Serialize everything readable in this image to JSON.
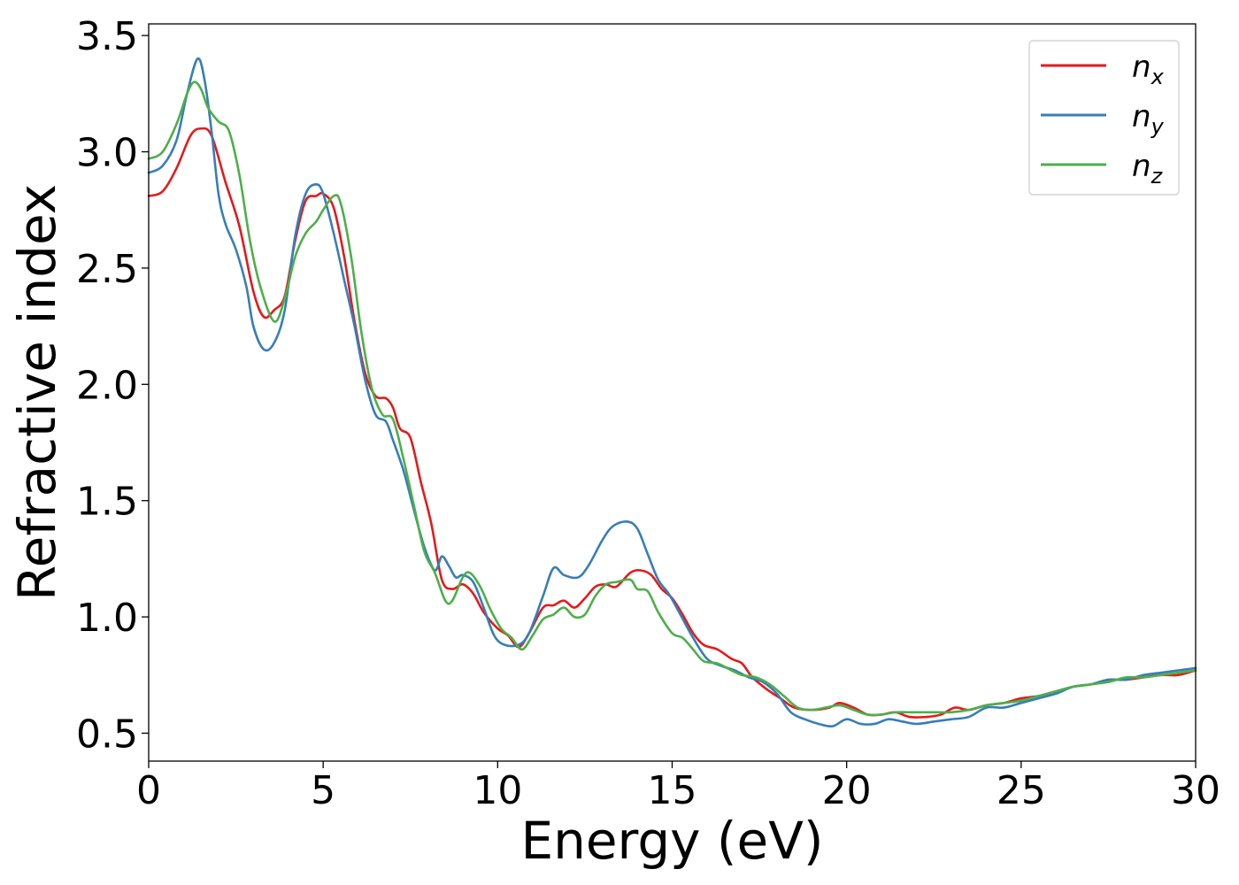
{
  "chart_data": {
    "type": "line",
    "xlabel": "Energy (eV)",
    "ylabel": "Refractive index",
    "xlim": [
      0,
      30
    ],
    "ylim": [
      0.38,
      3.55
    ],
    "xticks": [
      0,
      5,
      10,
      15,
      20,
      25,
      30
    ],
    "xtick_labels": [
      "0",
      "5",
      "10",
      "15",
      "20",
      "25",
      "30"
    ],
    "yticks": [
      0.5,
      1.0,
      1.5,
      2.0,
      2.5,
      3.0,
      3.5
    ],
    "ytick_labels": [
      "0.5",
      "1.0",
      "1.5",
      "2.0",
      "2.5",
      "3.0",
      "3.5"
    ],
    "grid": false,
    "legend_position": "top-right",
    "series": [
      {
        "name": "n_x",
        "base": "n",
        "sub": "x",
        "color": "#e41a1c",
        "points": [
          [
            0,
            2.81
          ],
          [
            0.4,
            2.83
          ],
          [
            0.8,
            2.93
          ],
          [
            1.2,
            3.07
          ],
          [
            1.5,
            3.1
          ],
          [
            1.8,
            3.07
          ],
          [
            2.2,
            2.87
          ],
          [
            2.6,
            2.68
          ],
          [
            3.0,
            2.4
          ],
          [
            3.3,
            2.29
          ],
          [
            3.6,
            2.32
          ],
          [
            3.9,
            2.38
          ],
          [
            4.2,
            2.62
          ],
          [
            4.5,
            2.79
          ],
          [
            4.8,
            2.81
          ],
          [
            5.0,
            2.82
          ],
          [
            5.3,
            2.76
          ],
          [
            5.6,
            2.55
          ],
          [
            5.9,
            2.27
          ],
          [
            6.2,
            2.05
          ],
          [
            6.5,
            1.95
          ],
          [
            6.8,
            1.94
          ],
          [
            7.0,
            1.9
          ],
          [
            7.2,
            1.81
          ],
          [
            7.5,
            1.77
          ],
          [
            7.8,
            1.58
          ],
          [
            8.1,
            1.4
          ],
          [
            8.4,
            1.16
          ],
          [
            8.7,
            1.12
          ],
          [
            9.0,
            1.14
          ],
          [
            9.3,
            1.1
          ],
          [
            9.6,
            1.02
          ],
          [
            10.0,
            0.95
          ],
          [
            10.3,
            0.92
          ],
          [
            10.6,
            0.87
          ],
          [
            10.9,
            0.93
          ],
          [
            11.3,
            1.04
          ],
          [
            11.6,
            1.05
          ],
          [
            11.9,
            1.07
          ],
          [
            12.2,
            1.04
          ],
          [
            12.5,
            1.08
          ],
          [
            12.8,
            1.13
          ],
          [
            13.1,
            1.14
          ],
          [
            13.4,
            1.13
          ],
          [
            13.8,
            1.19
          ],
          [
            14.1,
            1.2
          ],
          [
            14.4,
            1.18
          ],
          [
            14.7,
            1.12
          ],
          [
            15.0,
            1.08
          ],
          [
            15.3,
            1.01
          ],
          [
            15.6,
            0.93
          ],
          [
            15.9,
            0.88
          ],
          [
            16.3,
            0.86
          ],
          [
            16.7,
            0.82
          ],
          [
            17.0,
            0.8
          ],
          [
            17.3,
            0.74
          ],
          [
            17.7,
            0.69
          ],
          [
            18.1,
            0.65
          ],
          [
            18.5,
            0.61
          ],
          [
            19.0,
            0.6
          ],
          [
            19.5,
            0.61
          ],
          [
            19.8,
            0.63
          ],
          [
            20.2,
            0.61
          ],
          [
            20.6,
            0.58
          ],
          [
            21.0,
            0.58
          ],
          [
            21.4,
            0.59
          ],
          [
            21.8,
            0.57
          ],
          [
            22.3,
            0.57
          ],
          [
            22.7,
            0.58
          ],
          [
            23.1,
            0.61
          ],
          [
            23.5,
            0.6
          ],
          [
            24.0,
            0.62
          ],
          [
            24.5,
            0.63
          ],
          [
            25.0,
            0.65
          ],
          [
            25.5,
            0.66
          ],
          [
            26.0,
            0.68
          ],
          [
            26.5,
            0.7
          ],
          [
            27.0,
            0.71
          ],
          [
            27.5,
            0.73
          ],
          [
            28.0,
            0.73
          ],
          [
            28.5,
            0.74
          ],
          [
            29.0,
            0.75
          ],
          [
            29.5,
            0.75
          ],
          [
            30.0,
            0.77
          ]
        ]
      },
      {
        "name": "n_y",
        "base": "n",
        "sub": "y",
        "color": "#377eb8",
        "points": [
          [
            0,
            2.91
          ],
          [
            0.4,
            2.94
          ],
          [
            0.8,
            3.05
          ],
          [
            1.1,
            3.25
          ],
          [
            1.4,
            3.4
          ],
          [
            1.6,
            3.31
          ],
          [
            1.8,
            3.09
          ],
          [
            2.0,
            2.82
          ],
          [
            2.2,
            2.69
          ],
          [
            2.5,
            2.58
          ],
          [
            2.8,
            2.42
          ],
          [
            3.0,
            2.25
          ],
          [
            3.3,
            2.15
          ],
          [
            3.6,
            2.18
          ],
          [
            3.9,
            2.32
          ],
          [
            4.2,
            2.64
          ],
          [
            4.5,
            2.82
          ],
          [
            4.8,
            2.86
          ],
          [
            5.0,
            2.82
          ],
          [
            5.3,
            2.65
          ],
          [
            5.6,
            2.45
          ],
          [
            5.9,
            2.25
          ],
          [
            6.2,
            2.02
          ],
          [
            6.5,
            1.87
          ],
          [
            6.8,
            1.84
          ],
          [
            7.0,
            1.76
          ],
          [
            7.3,
            1.63
          ],
          [
            7.6,
            1.46
          ],
          [
            7.9,
            1.3
          ],
          [
            8.2,
            1.2
          ],
          [
            8.4,
            1.26
          ],
          [
            8.6,
            1.22
          ],
          [
            8.8,
            1.17
          ],
          [
            9.0,
            1.18
          ],
          [
            9.3,
            1.15
          ],
          [
            9.6,
            1.04
          ],
          [
            9.9,
            0.92
          ],
          [
            10.2,
            0.88
          ],
          [
            10.6,
            0.88
          ],
          [
            10.9,
            0.93
          ],
          [
            11.3,
            1.09
          ],
          [
            11.6,
            1.21
          ],
          [
            11.9,
            1.18
          ],
          [
            12.3,
            1.17
          ],
          [
            12.6,
            1.22
          ],
          [
            13.0,
            1.33
          ],
          [
            13.3,
            1.39
          ],
          [
            13.7,
            1.41
          ],
          [
            14.0,
            1.38
          ],
          [
            14.3,
            1.27
          ],
          [
            14.6,
            1.16
          ],
          [
            14.9,
            1.1
          ],
          [
            15.2,
            1.02
          ],
          [
            15.6,
            0.91
          ],
          [
            16.0,
            0.82
          ],
          [
            16.4,
            0.79
          ],
          [
            16.8,
            0.77
          ],
          [
            17.2,
            0.74
          ],
          [
            17.6,
            0.72
          ],
          [
            18.0,
            0.67
          ],
          [
            18.4,
            0.59
          ],
          [
            18.8,
            0.56
          ],
          [
            19.2,
            0.54
          ],
          [
            19.6,
            0.53
          ],
          [
            20.0,
            0.56
          ],
          [
            20.4,
            0.54
          ],
          [
            20.8,
            0.54
          ],
          [
            21.2,
            0.56
          ],
          [
            21.6,
            0.55
          ],
          [
            22.0,
            0.54
          ],
          [
            22.5,
            0.55
          ],
          [
            23.0,
            0.56
          ],
          [
            23.5,
            0.57
          ],
          [
            24.0,
            0.61
          ],
          [
            24.5,
            0.61
          ],
          [
            25.0,
            0.63
          ],
          [
            25.5,
            0.65
          ],
          [
            26.0,
            0.67
          ],
          [
            26.5,
            0.7
          ],
          [
            27.0,
            0.71
          ],
          [
            27.5,
            0.73
          ],
          [
            28.0,
            0.73
          ],
          [
            28.5,
            0.75
          ],
          [
            29.0,
            0.76
          ],
          [
            29.5,
            0.77
          ],
          [
            30.0,
            0.78
          ]
        ]
      },
      {
        "name": "n_z",
        "base": "n",
        "sub": "z",
        "color": "#4daf4a",
        "points": [
          [
            0,
            2.97
          ],
          [
            0.4,
            3.0
          ],
          [
            0.8,
            3.12
          ],
          [
            1.1,
            3.25
          ],
          [
            1.3,
            3.3
          ],
          [
            1.5,
            3.27
          ],
          [
            1.7,
            3.19
          ],
          [
            2.0,
            3.13
          ],
          [
            2.3,
            3.09
          ],
          [
            2.6,
            2.9
          ],
          [
            2.9,
            2.62
          ],
          [
            3.2,
            2.42
          ],
          [
            3.6,
            2.27
          ],
          [
            3.9,
            2.37
          ],
          [
            4.2,
            2.55
          ],
          [
            4.5,
            2.65
          ],
          [
            4.8,
            2.7
          ],
          [
            5.0,
            2.75
          ],
          [
            5.3,
            2.81
          ],
          [
            5.5,
            2.78
          ],
          [
            5.8,
            2.55
          ],
          [
            6.1,
            2.22
          ],
          [
            6.4,
            1.98
          ],
          [
            6.7,
            1.87
          ],
          [
            7.0,
            1.85
          ],
          [
            7.3,
            1.68
          ],
          [
            7.6,
            1.48
          ],
          [
            7.9,
            1.28
          ],
          [
            8.2,
            1.19
          ],
          [
            8.5,
            1.07
          ],
          [
            8.7,
            1.07
          ],
          [
            9.0,
            1.17
          ],
          [
            9.2,
            1.19
          ],
          [
            9.5,
            1.13
          ],
          [
            9.8,
            1.03
          ],
          [
            10.1,
            0.95
          ],
          [
            10.4,
            0.91
          ],
          [
            10.7,
            0.86
          ],
          [
            11.0,
            0.92
          ],
          [
            11.3,
            0.99
          ],
          [
            11.6,
            1.01
          ],
          [
            11.9,
            1.04
          ],
          [
            12.2,
            1.0
          ],
          [
            12.5,
            1.01
          ],
          [
            12.8,
            1.09
          ],
          [
            13.1,
            1.14
          ],
          [
            13.4,
            1.15
          ],
          [
            13.8,
            1.16
          ],
          [
            14.0,
            1.12
          ],
          [
            14.3,
            1.11
          ],
          [
            14.6,
            1.02
          ],
          [
            15.0,
            0.93
          ],
          [
            15.3,
            0.91
          ],
          [
            15.6,
            0.86
          ],
          [
            15.9,
            0.81
          ],
          [
            16.3,
            0.8
          ],
          [
            16.7,
            0.77
          ],
          [
            17.0,
            0.75
          ],
          [
            17.4,
            0.74
          ],
          [
            17.8,
            0.71
          ],
          [
            18.2,
            0.66
          ],
          [
            18.6,
            0.61
          ],
          [
            19.0,
            0.6
          ],
          [
            19.4,
            0.61
          ],
          [
            19.8,
            0.62
          ],
          [
            20.2,
            0.6
          ],
          [
            20.6,
            0.58
          ],
          [
            21.0,
            0.58
          ],
          [
            21.4,
            0.59
          ],
          [
            21.8,
            0.59
          ],
          [
            22.2,
            0.59
          ],
          [
            22.6,
            0.59
          ],
          [
            23.0,
            0.59
          ],
          [
            23.5,
            0.6
          ],
          [
            24.0,
            0.62
          ],
          [
            24.5,
            0.63
          ],
          [
            25.0,
            0.64
          ],
          [
            25.5,
            0.66
          ],
          [
            26.0,
            0.68
          ],
          [
            26.5,
            0.7
          ],
          [
            27.0,
            0.71
          ],
          [
            27.5,
            0.72
          ],
          [
            28.0,
            0.74
          ],
          [
            28.5,
            0.74
          ],
          [
            29.0,
            0.75
          ],
          [
            29.5,
            0.76
          ],
          [
            30.0,
            0.77
          ]
        ]
      }
    ]
  }
}
